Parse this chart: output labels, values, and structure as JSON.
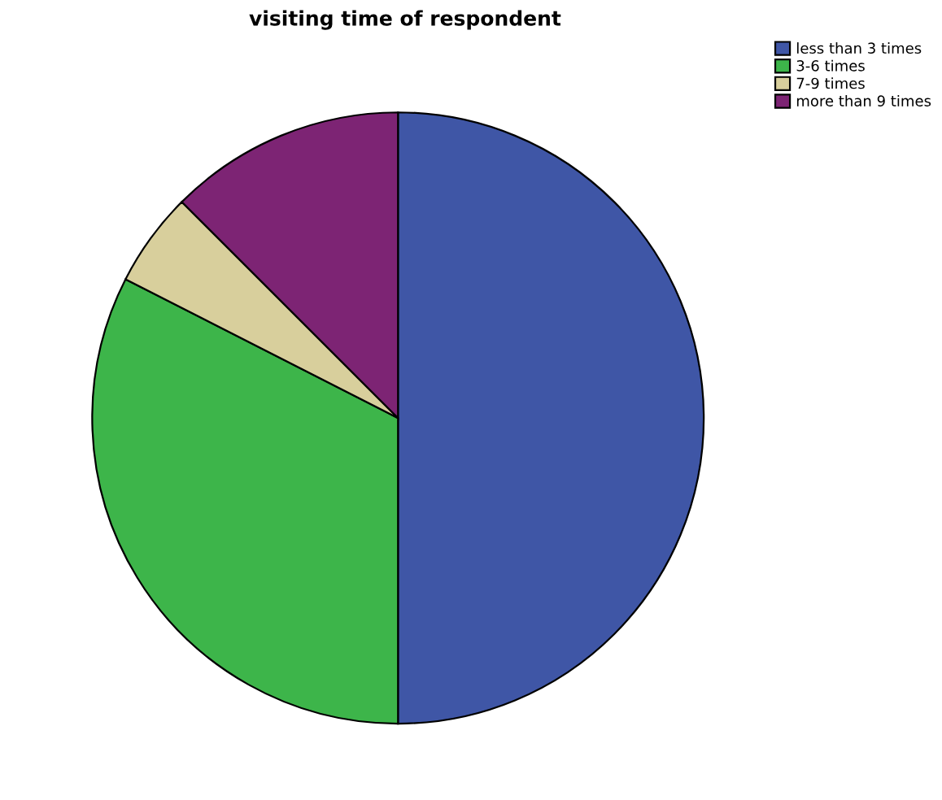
{
  "chart_data": {
    "type": "pie",
    "title": "visiting time of respondent",
    "categories": [
      "less than 3 times",
      "3-6 times",
      "7-9 times",
      "more than 9 times"
    ],
    "values": [
      50,
      32.5,
      5,
      12.5
    ],
    "colors": [
      "#3f56a6",
      "#3db54a",
      "#d8cf9c",
      "#7d2474"
    ],
    "legend": "top right"
  }
}
